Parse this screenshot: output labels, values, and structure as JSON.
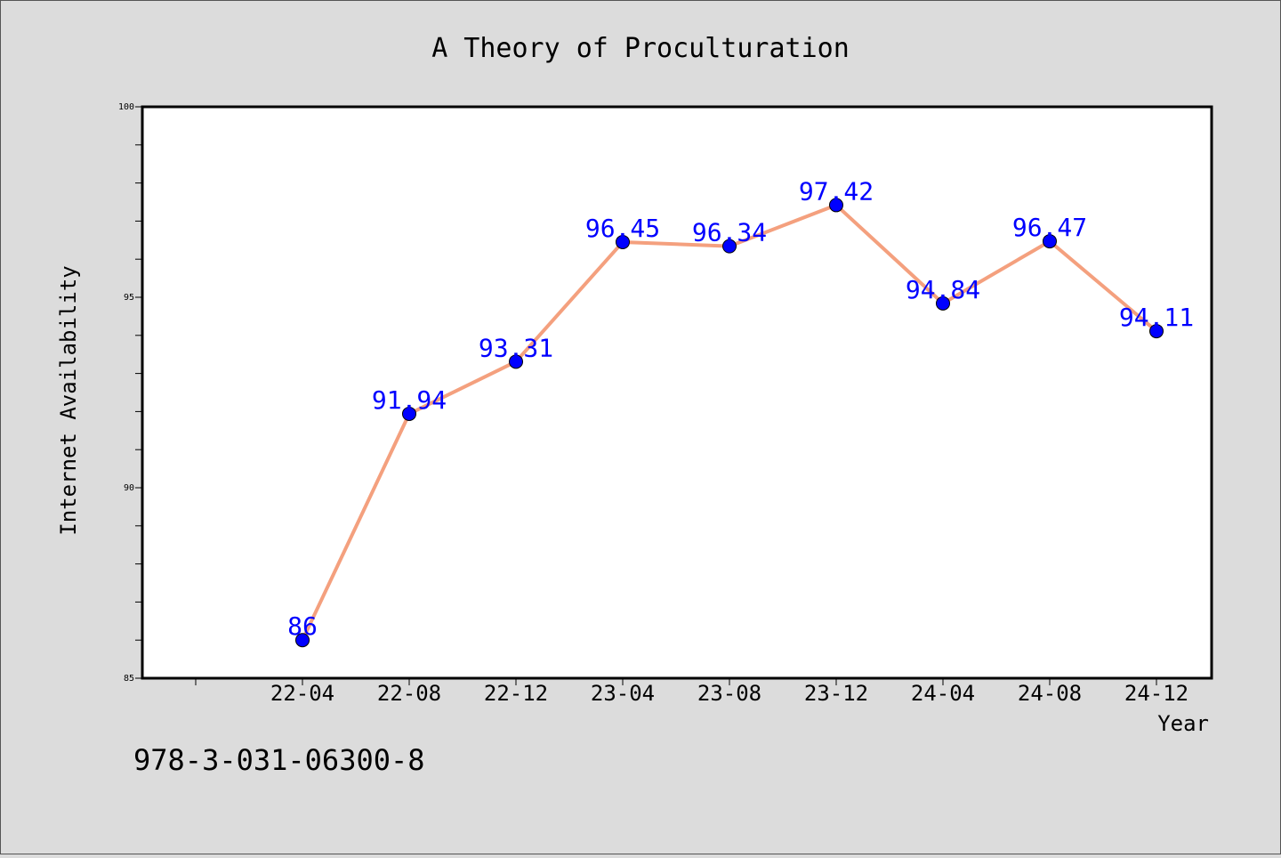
{
  "chart_data": {
    "type": "line",
    "title": "A Theory of Proculturation",
    "xlabel": "Year",
    "ylabel": "Internet Availability",
    "categories": [
      "22-04",
      "22-08",
      "22-12",
      "23-04",
      "23-08",
      "23-12",
      "24-04",
      "24-08",
      "24-12"
    ],
    "series": [
      {
        "values": [
          86,
          91.94,
          93.31,
          96.45,
          96.34,
          97.42,
          94.84,
          96.47,
          94.11
        ],
        "data_labels": [
          "86",
          "91.94",
          "93.31",
          "96.45",
          "96.34",
          "97.42",
          "94.84",
          "96.47",
          "94.11"
        ],
        "line_color": "#f4a07e",
        "marker_color": "#0000ff"
      }
    ],
    "ylim": [
      85,
      100
    ],
    "yticks": [
      "85",
      "90",
      "95",
      "100"
    ],
    "grid": false,
    "legend": "none"
  },
  "footer": {
    "text": "978-3-031-06300-8"
  },
  "colors": {
    "background": "#dcdcdc",
    "plot_background": "#ffffff",
    "axis": "#000000",
    "line": "#f4a07e",
    "marker": "#0000ff",
    "data_label": "#0000ff"
  }
}
